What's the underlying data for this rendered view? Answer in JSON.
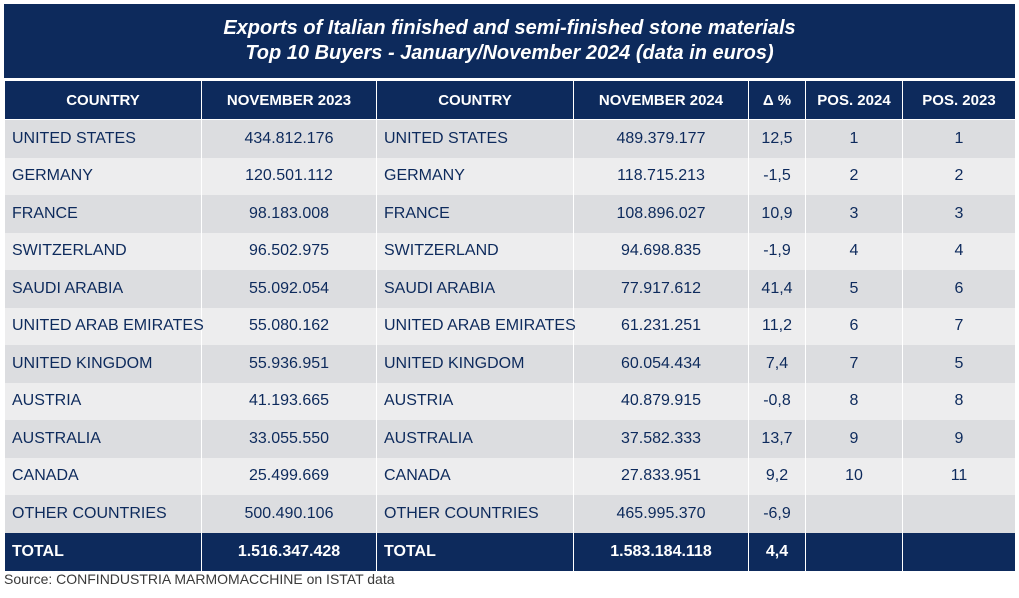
{
  "chart_data": {
    "type": "table",
    "title": "Exports of Italian finished and semi-finished stone materials",
    "subtitle": "Top 10 Buyers - January/November 2024 (data in euros)",
    "columns": [
      "COUNTRY",
      "NOVEMBER 2023",
      "COUNTRY",
      "NOVEMBER 2024",
      "Δ %",
      "POS. 2024",
      "POS. 2023"
    ],
    "rows": [
      [
        "UNITED STATES",
        "434.812.176",
        "UNITED STATES",
        "489.379.177",
        "12,5",
        "1",
        "1"
      ],
      [
        "GERMANY",
        "120.501.112",
        "GERMANY",
        "118.715.213",
        "-1,5",
        "2",
        "2"
      ],
      [
        "FRANCE",
        "98.183.008",
        "FRANCE",
        "108.896.027",
        "10,9",
        "3",
        "3"
      ],
      [
        "SWITZERLAND",
        "96.502.975",
        "SWITZERLAND",
        "94.698.835",
        "-1,9",
        "4",
        "4"
      ],
      [
        "SAUDI ARABIA",
        "55.092.054",
        "SAUDI ARABIA",
        "77.917.612",
        "41,4",
        "5",
        "6"
      ],
      [
        "UNITED ARAB EMIRATES",
        "55.080.162",
        "UNITED ARAB EMIRATES",
        "61.231.251",
        "11,2",
        "6",
        "7"
      ],
      [
        "UNITED KINGDOM",
        "55.936.951",
        "UNITED KINGDOM",
        "60.054.434",
        "7,4",
        "7",
        "5"
      ],
      [
        "AUSTRIA",
        "41.193.665",
        "AUSTRIA",
        "40.879.915",
        "-0,8",
        "8",
        "8"
      ],
      [
        "AUSTRALIA",
        "33.055.550",
        "AUSTRALIA",
        "37.582.333",
        "13,7",
        "9",
        "9"
      ],
      [
        "CANADA",
        "25.499.669",
        "CANADA",
        "27.833.951",
        "9,2",
        "10",
        "11"
      ],
      [
        "OTHER COUNTRIES",
        "500.490.106",
        "OTHER COUNTRIES",
        "465.995.370",
        "-6,9",
        "",
        ""
      ]
    ],
    "total": [
      "TOTAL",
      "1.516.347.428",
      "TOTAL",
      "1.583.184.118",
      "4,4",
      "",
      ""
    ]
  },
  "source": "Source: CONFINDUSTRIA MARMOMACCHINE on ISTAT data",
  "colors": {
    "header_bg": "#0d2a5c",
    "row_odd": "#dcdde0",
    "row_even": "#ededee",
    "text": "#0d2a5c"
  }
}
